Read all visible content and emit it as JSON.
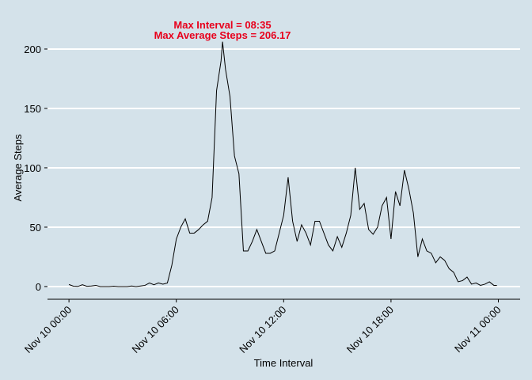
{
  "chart_data": {
    "type": "line",
    "annotations": [
      "Max Interval =  08:35",
      "Max Average Steps =  206.17"
    ],
    "x_label": "Time Interval",
    "y_label": "Average Steps",
    "color": "#000000",
    "grid": true,
    "x": [
      "Nov 10 00:00",
      "Nov 10 00:15",
      "Nov 10 00:30",
      "Nov 10 00:45",
      "Nov 10 01:00",
      "Nov 10 01:15",
      "Nov 10 01:30",
      "Nov 10 01:45",
      "Nov 10 02:00",
      "Nov 10 02:15",
      "Nov 10 02:30",
      "Nov 10 02:45",
      "Nov 10 03:00",
      "Nov 10 03:15",
      "Nov 10 03:30",
      "Nov 10 03:45",
      "Nov 10 04:00",
      "Nov 10 04:15",
      "Nov 10 04:30",
      "Nov 10 04:45",
      "Nov 10 05:00",
      "Nov 10 05:15",
      "Nov 10 05:30",
      "Nov 10 05:45",
      "Nov 10 06:00",
      "Nov 10 06:15",
      "Nov 10 06:30",
      "Nov 10 06:45",
      "Nov 10 07:00",
      "Nov 10 07:15",
      "Nov 10 07:30",
      "Nov 10 07:45",
      "Nov 10 08:00",
      "Nov 10 08:15",
      "Nov 10 08:30",
      "Nov 10 08:35",
      "Nov 10 08:45",
      "Nov 10 09:00",
      "Nov 10 09:15",
      "Nov 10 09:30",
      "Nov 10 09:45",
      "Nov 10 10:00",
      "Nov 10 10:15",
      "Nov 10 10:30",
      "Nov 10 10:45",
      "Nov 10 11:00",
      "Nov 10 11:15",
      "Nov 10 11:30",
      "Nov 10 11:45",
      "Nov 10 12:00",
      "Nov 10 12:15",
      "Nov 10 12:30",
      "Nov 10 12:45",
      "Nov 10 13:00",
      "Nov 10 13:15",
      "Nov 10 13:30",
      "Nov 10 13:45",
      "Nov 10 14:00",
      "Nov 10 14:15",
      "Nov 10 14:30",
      "Nov 10 14:45",
      "Nov 10 15:00",
      "Nov 10 15:15",
      "Nov 10 15:30",
      "Nov 10 15:45",
      "Nov 10 16:00",
      "Nov 10 16:15",
      "Nov 10 16:30",
      "Nov 10 16:45",
      "Nov 10 17:00",
      "Nov 10 17:15",
      "Nov 10 17:30",
      "Nov 10 17:45",
      "Nov 10 18:00",
      "Nov 10 18:15",
      "Nov 10 18:30",
      "Nov 10 18:45",
      "Nov 10 19:00",
      "Nov 10 19:15",
      "Nov 10 19:30",
      "Nov 10 19:45",
      "Nov 10 20:00",
      "Nov 10 20:15",
      "Nov 10 20:30",
      "Nov 10 20:45",
      "Nov 10 21:00",
      "Nov 10 21:15",
      "Nov 10 21:30",
      "Nov 10 21:45",
      "Nov 10 22:00",
      "Nov 10 22:15",
      "Nov 10 22:30",
      "Nov 10 22:45",
      "Nov 10 23:00",
      "Nov 10 23:15",
      "Nov 10 23:30",
      "Nov 10 23:45",
      "Nov 10 23:55"
    ],
    "values": [
      1.7,
      0.3,
      0.1,
      1.5,
      0.2,
      0.5,
      1,
      0,
      0,
      0,
      0.3,
      0,
      0,
      0,
      0.5,
      0,
      0.5,
      1,
      3,
      1.5,
      3,
      2,
      3,
      18,
      40,
      50,
      57,
      45,
      45,
      48,
      52,
      55,
      75,
      165,
      190,
      206.17,
      183,
      160,
      110,
      95,
      30,
      30,
      38,
      48,
      38,
      28,
      28,
      30,
      45,
      60,
      92,
      55,
      38,
      52,
      45,
      35,
      55,
      55,
      45,
      35,
      30,
      42,
      33,
      45,
      60,
      100,
      65,
      70,
      48,
      44,
      50,
      68,
      75,
      40,
      80,
      68,
      98,
      82,
      62,
      25,
      40,
      30,
      28,
      20,
      25,
      22,
      15,
      12,
      4,
      5,
      8,
      2,
      3,
      1,
      2,
      4,
      1,
      1
    ],
    "xlim": [
      "Nov 09 22:48",
      "Nov 11 01:13"
    ],
    "xticks": [
      "Nov 10 00:00",
      "Nov 10 06:00",
      "Nov 10 12:00",
      "Nov 10 18:00",
      "Nov 11 00:00"
    ],
    "ylim": [
      -10.7,
      211.3
    ],
    "yticks": [
      0,
      50,
      100,
      150,
      200
    ]
  }
}
